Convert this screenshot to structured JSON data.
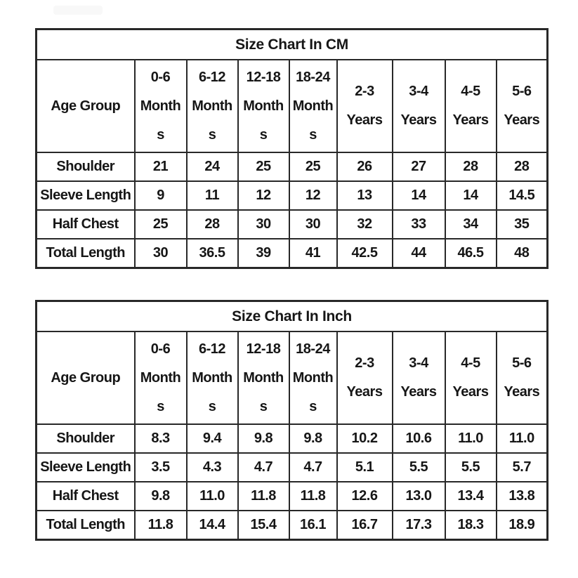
{
  "colors": {
    "page_background": "#ffffff",
    "table_border": "#282828",
    "text": "#161616",
    "smudge": "#f8f8f8"
  },
  "tables": [
    {
      "name": "cm",
      "title": "Size Chart In CM",
      "corner_label": "Age Group",
      "column_headers": [
        "0-6\nMonth\ns",
        "6-12\nMonth\ns",
        "12-18\nMonth\ns",
        "18-24\nMonth\ns",
        "2-3\nYears",
        "3-4\nYears",
        "4-5\nYears",
        "5-6\nYears"
      ],
      "rows": [
        {
          "label": "Shoulder",
          "values": [
            "21",
            "24",
            "25",
            "25",
            "26",
            "27",
            "28",
            "28"
          ]
        },
        {
          "label": "Sleeve Length",
          "values": [
            "9",
            "11",
            "12",
            "12",
            "13",
            "14",
            "14",
            "14.5"
          ]
        },
        {
          "label": "Half Chest",
          "values": [
            "25",
            "28",
            "30",
            "30",
            "32",
            "33",
            "34",
            "35"
          ]
        },
        {
          "label": "Total Length",
          "values": [
            "30",
            "36.5",
            "39",
            "41",
            "42.5",
            "44",
            "46.5",
            "48"
          ]
        }
      ]
    },
    {
      "name": "inch",
      "title": "Size Chart In Inch",
      "corner_label": "Age Group",
      "column_headers": [
        "0-6\nMonth\ns",
        "6-12\nMonth\ns",
        "12-18\nMonth\ns",
        "18-24\nMonth\ns",
        "2-3\nYears",
        "3-4\nYears",
        "4-5\nYears",
        "5-6\nYears"
      ],
      "rows": [
        {
          "label": "Shoulder",
          "values": [
            "8.3",
            "9.4",
            "9.8",
            "9.8",
            "10.2",
            "10.6",
            "11.0",
            "11.0"
          ]
        },
        {
          "label": "Sleeve Length",
          "values": [
            "3.5",
            "4.3",
            "4.7",
            "4.7",
            "5.1",
            "5.5",
            "5.5",
            "5.7"
          ]
        },
        {
          "label": "Half Chest",
          "values": [
            "9.8",
            "11.0",
            "11.8",
            "11.8",
            "12.6",
            "13.0",
            "13.4",
            "13.8"
          ]
        },
        {
          "label": "Total Length",
          "values": [
            "11.8",
            "14.4",
            "15.4",
            "16.1",
            "16.7",
            "17.3",
            "18.3",
            "18.9"
          ]
        }
      ]
    }
  ],
  "chart_data": [
    {
      "type": "table",
      "title": "Size Chart In CM",
      "columns": [
        "Age Group",
        "0-6 Months",
        "6-12 Months",
        "12-18 Months",
        "18-24 Months",
        "2-3 Years",
        "3-4 Years",
        "4-5 Years",
        "5-6 Years"
      ],
      "rows": [
        [
          "Shoulder",
          21,
          24,
          25,
          25,
          26,
          27,
          28,
          28
        ],
        [
          "Sleeve Length",
          9,
          11,
          12,
          12,
          13,
          14,
          14,
          14.5
        ],
        [
          "Half Chest",
          25,
          28,
          30,
          30,
          32,
          33,
          34,
          35
        ],
        [
          "Total Length",
          30,
          36.5,
          39,
          41,
          42.5,
          44,
          46.5,
          48
        ]
      ]
    },
    {
      "type": "table",
      "title": "Size Chart In Inch",
      "columns": [
        "Age Group",
        "0-6 Months",
        "6-12 Months",
        "12-18 Months",
        "18-24 Months",
        "2-3 Years",
        "3-4 Years",
        "4-5 Years",
        "5-6 Years"
      ],
      "rows": [
        [
          "Shoulder",
          8.3,
          9.4,
          9.8,
          9.8,
          10.2,
          10.6,
          11.0,
          11.0
        ],
        [
          "Sleeve Length",
          3.5,
          4.3,
          4.7,
          4.7,
          5.1,
          5.5,
          5.5,
          5.7
        ],
        [
          "Half Chest",
          9.8,
          11.0,
          11.8,
          11.8,
          12.6,
          13.0,
          13.4,
          13.8
        ],
        [
          "Total Length",
          11.8,
          14.4,
          15.4,
          16.1,
          16.7,
          17.3,
          18.3,
          18.9
        ]
      ]
    }
  ]
}
